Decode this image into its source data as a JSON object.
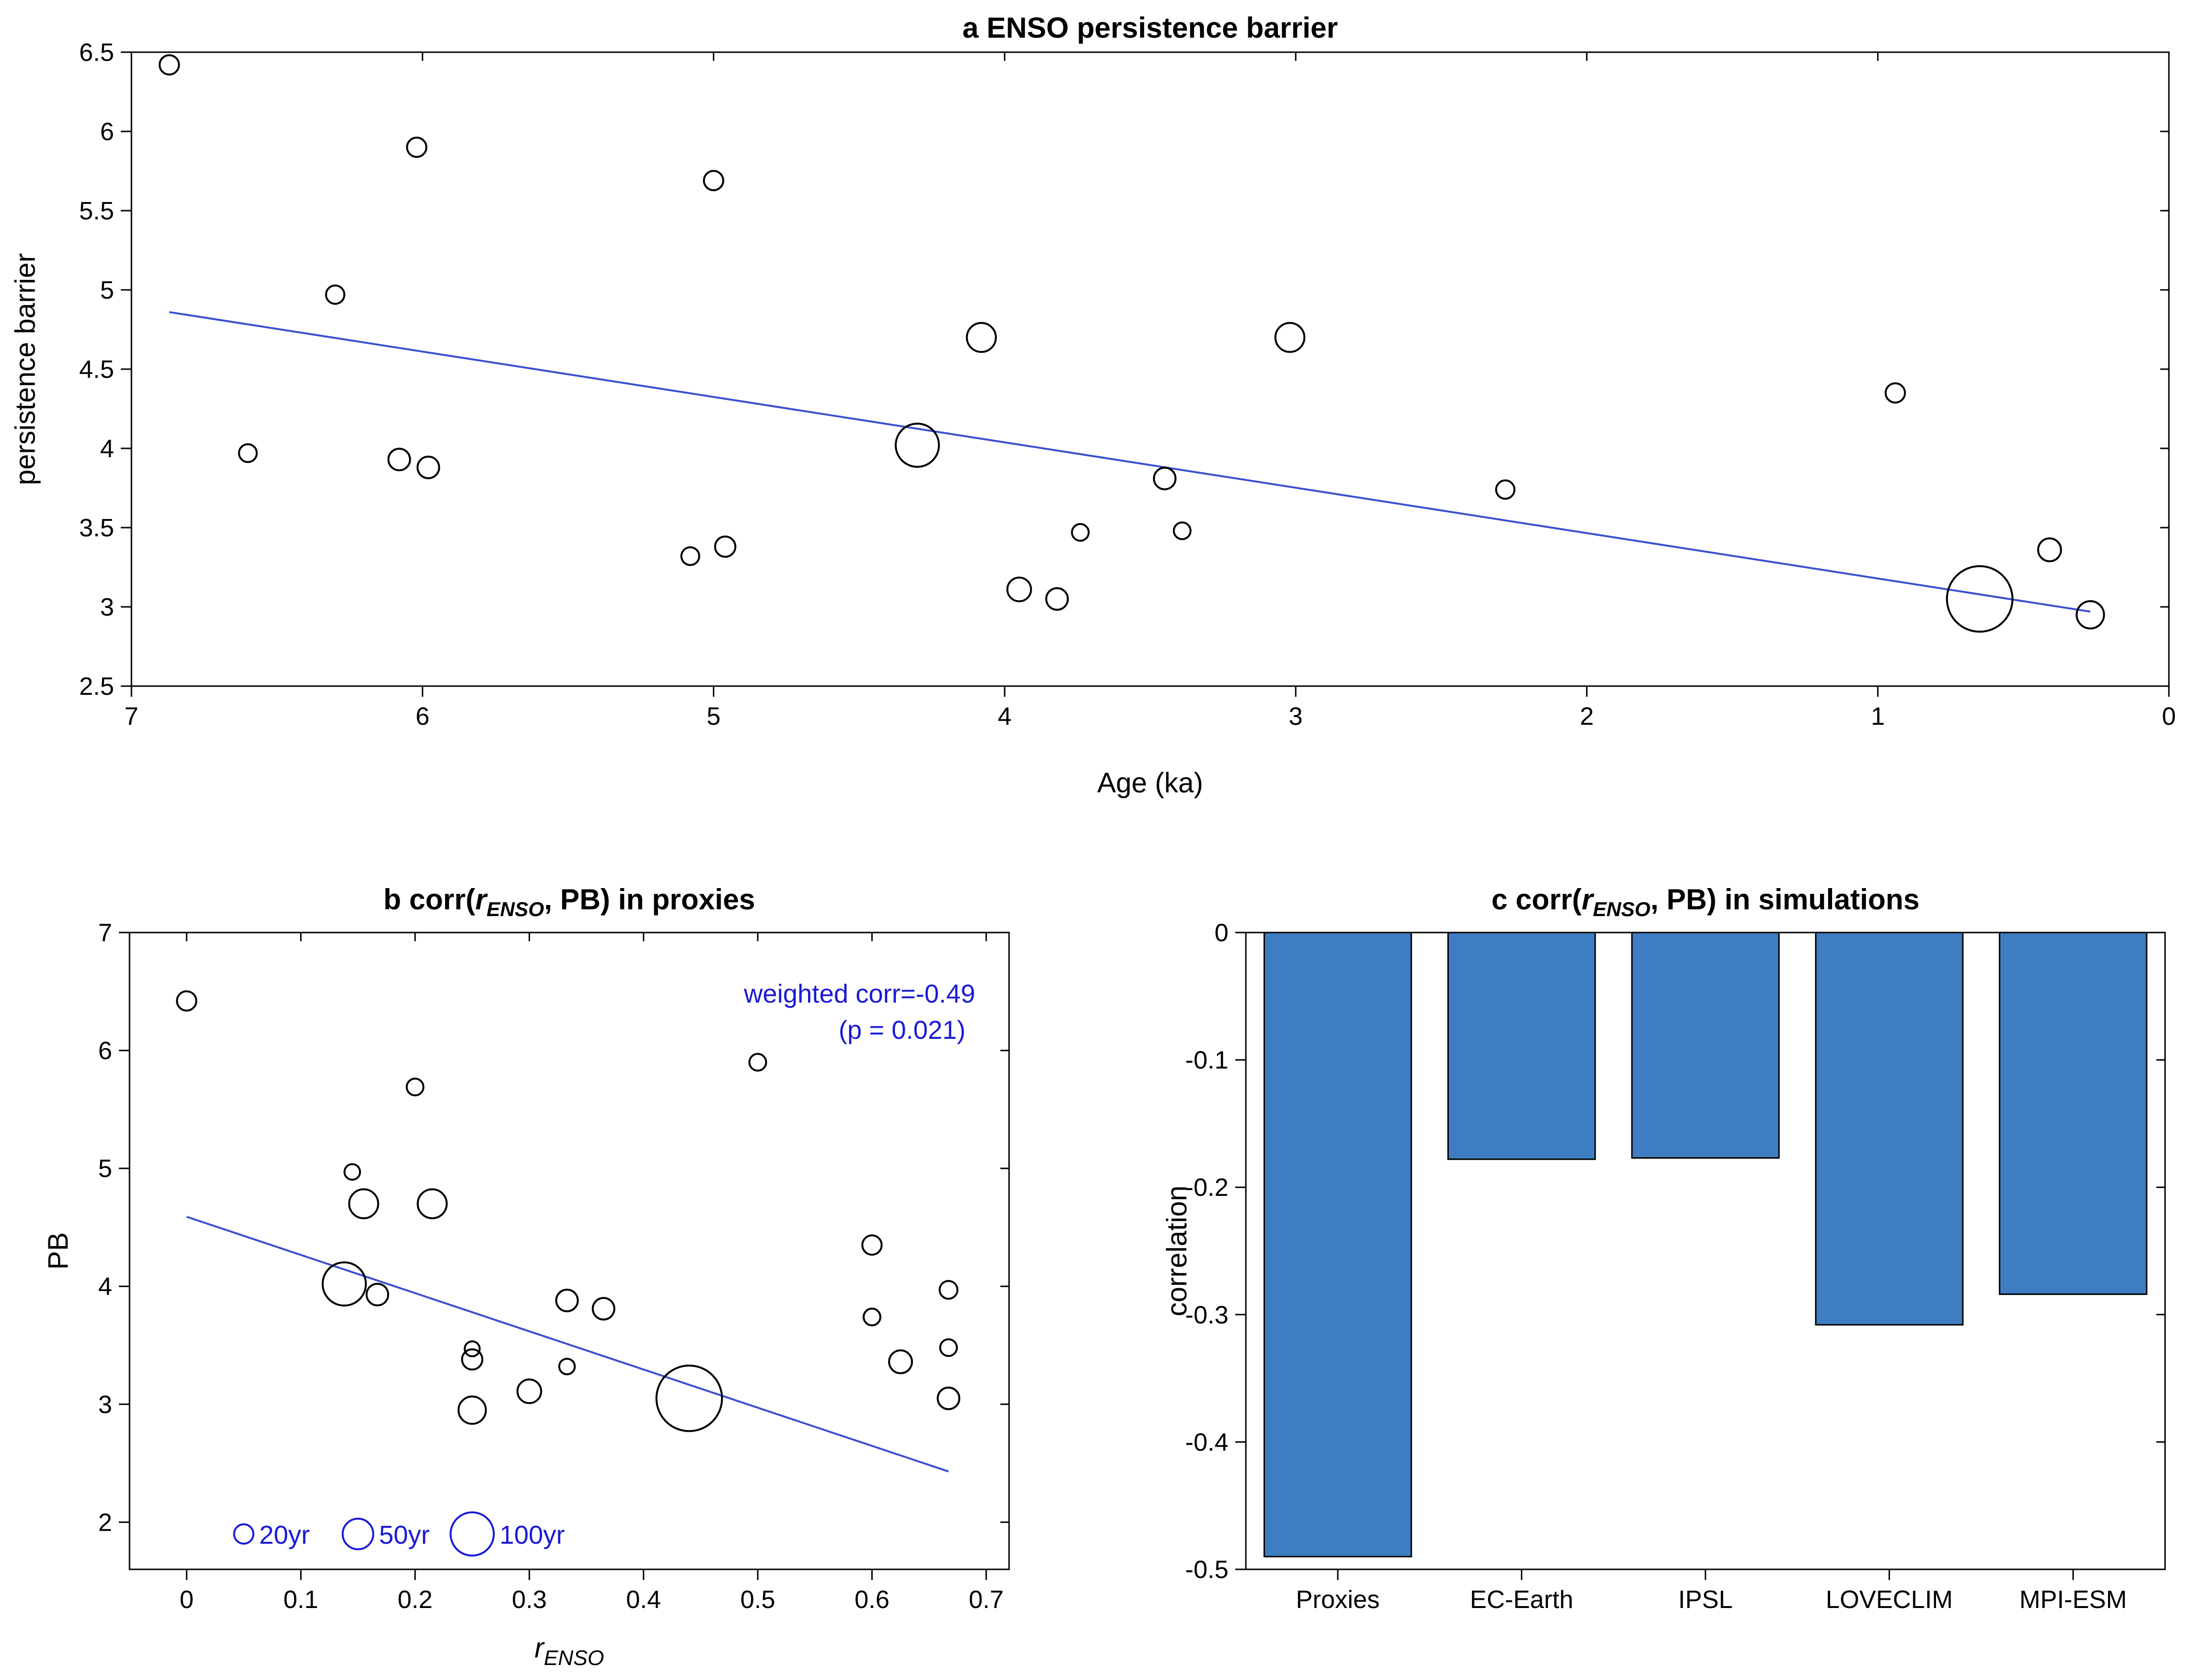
{
  "chart_data": [
    {
      "id": "a",
      "type": "scatter",
      "title": "a ENSO persistence barrier",
      "xlabel": "Age (ka)",
      "ylabel": "persistence barrier",
      "xlim": [
        7,
        0
      ],
      "ylim": [
        2.5,
        6.5
      ],
      "xticks": [
        7,
        6,
        5,
        4,
        3,
        2,
        1,
        0
      ],
      "yticks": [
        2.5,
        3,
        3.5,
        4,
        4.5,
        5,
        5.5,
        6,
        6.5
      ],
      "grid": false,
      "marker_size_meaning": "record length (yr)",
      "points": [
        {
          "x": 6.87,
          "y": 6.42,
          "size": 20
        },
        {
          "x": 6.02,
          "y": 5.9,
          "size": 20
        },
        {
          "x": 5.0,
          "y": 5.69,
          "size": 20
        },
        {
          "x": 6.3,
          "y": 4.97,
          "size": 18
        },
        {
          "x": 6.6,
          "y": 3.97,
          "size": 17
        },
        {
          "x": 6.08,
          "y": 3.93,
          "size": 25
        },
        {
          "x": 5.98,
          "y": 3.88,
          "size": 25
        },
        {
          "x": 5.08,
          "y": 3.32,
          "size": 17
        },
        {
          "x": 4.96,
          "y": 3.38,
          "size": 22
        },
        {
          "x": 4.3,
          "y": 4.02,
          "size": 100
        },
        {
          "x": 4.08,
          "y": 4.7,
          "size": 45
        },
        {
          "x": 3.95,
          "y": 3.11,
          "size": 30
        },
        {
          "x": 3.82,
          "y": 3.05,
          "size": 25
        },
        {
          "x": 3.74,
          "y": 3.47,
          "size": 15
        },
        {
          "x": 3.45,
          "y": 3.81,
          "size": 25
        },
        {
          "x": 3.39,
          "y": 3.48,
          "size": 15
        },
        {
          "x": 3.02,
          "y": 4.7,
          "size": 45
        },
        {
          "x": 2.28,
          "y": 3.74,
          "size": 18
        },
        {
          "x": 0.94,
          "y": 4.35,
          "size": 20
        },
        {
          "x": 0.65,
          "y": 3.05,
          "size": 230
        },
        {
          "x": 0.41,
          "y": 3.36,
          "size": 28
        },
        {
          "x": 0.27,
          "y": 2.95,
          "size": 40
        }
      ],
      "fit_line": {
        "x": [
          6.87,
          0.27
        ],
        "y": [
          4.86,
          2.97
        ]
      }
    },
    {
      "id": "b",
      "type": "scatter",
      "title_prefix": "b  corr(",
      "title_var": "r",
      "title_sub": "ENSO",
      "title_suffix": ", PB) in proxies",
      "xlabel_var": "r",
      "xlabel_sub": "ENSO",
      "ylabel": "PB",
      "xlim": [
        -0.05,
        0.72
      ],
      "ylim": [
        1.6,
        7
      ],
      "xticks": [
        0,
        0.1,
        0.2,
        0.3,
        0.4,
        0.5,
        0.6,
        0.7
      ],
      "yticks": [
        2,
        3,
        4,
        5,
        6,
        7
      ],
      "grid": false,
      "annotation": [
        "weighted corr=-0.49",
        "(p = 0.021)"
      ],
      "legend": {
        "placement": "bottom-left",
        "entries": [
          {
            "label": "20yr",
            "size": 20
          },
          {
            "label": "50yr",
            "size": 50
          },
          {
            "label": "100yr",
            "size": 100
          }
        ]
      },
      "points": [
        {
          "x": 0.0,
          "y": 6.42,
          "size": 20
        },
        {
          "x": 0.5,
          "y": 5.9,
          "size": 15
        },
        {
          "x": 0.2,
          "y": 5.69,
          "size": 15
        },
        {
          "x": 0.145,
          "y": 4.97,
          "size": 13
        },
        {
          "x": 0.155,
          "y": 4.7,
          "size": 45
        },
        {
          "x": 0.215,
          "y": 4.7,
          "size": 45
        },
        {
          "x": 0.138,
          "y": 4.02,
          "size": 100
        },
        {
          "x": 0.167,
          "y": 3.93,
          "size": 25
        },
        {
          "x": 0.333,
          "y": 3.88,
          "size": 25
        },
        {
          "x": 0.365,
          "y": 3.81,
          "size": 25
        },
        {
          "x": 0.25,
          "y": 3.47,
          "size": 12
        },
        {
          "x": 0.25,
          "y": 3.38,
          "size": 22
        },
        {
          "x": 0.333,
          "y": 3.32,
          "size": 13
        },
        {
          "x": 0.3,
          "y": 3.11,
          "size": 30
        },
        {
          "x": 0.25,
          "y": 2.95,
          "size": 40
        },
        {
          "x": 0.44,
          "y": 3.05,
          "size": 230
        },
        {
          "x": 0.6,
          "y": 4.35,
          "size": 20
        },
        {
          "x": 0.6,
          "y": 3.74,
          "size": 15
        },
        {
          "x": 0.625,
          "y": 3.36,
          "size": 28
        },
        {
          "x": 0.667,
          "y": 3.97,
          "size": 17
        },
        {
          "x": 0.667,
          "y": 3.48,
          "size": 15
        },
        {
          "x": 0.667,
          "y": 3.05,
          "size": 25
        }
      ],
      "fit_line": {
        "x": [
          0.0,
          0.667
        ],
        "y": [
          4.59,
          2.43
        ]
      }
    },
    {
      "id": "c",
      "type": "bar",
      "title_prefix": "c  corr(",
      "title_var": "r",
      "title_sub": "ENSO",
      "title_suffix": ", PB) in simulations",
      "xlabel": "",
      "ylabel": "correlation",
      "ylim": [
        -0.5,
        0
      ],
      "yticks": [
        0,
        -0.1,
        -0.2,
        -0.3,
        -0.4,
        -0.5
      ],
      "grid": false,
      "bar_color": "#3e7dc1",
      "categories": [
        "Proxies",
        "EC-Earth",
        "IPSL",
        "LOVECLIM",
        "MPI-ESM"
      ],
      "values": [
        -0.49,
        -0.178,
        -0.177,
        -0.308,
        -0.284
      ]
    }
  ],
  "colors": {
    "fit_line": "#3a4fd0",
    "annotation": "#1a1ad6",
    "bar": "#3e7dc1",
    "axis": "#000000"
  }
}
